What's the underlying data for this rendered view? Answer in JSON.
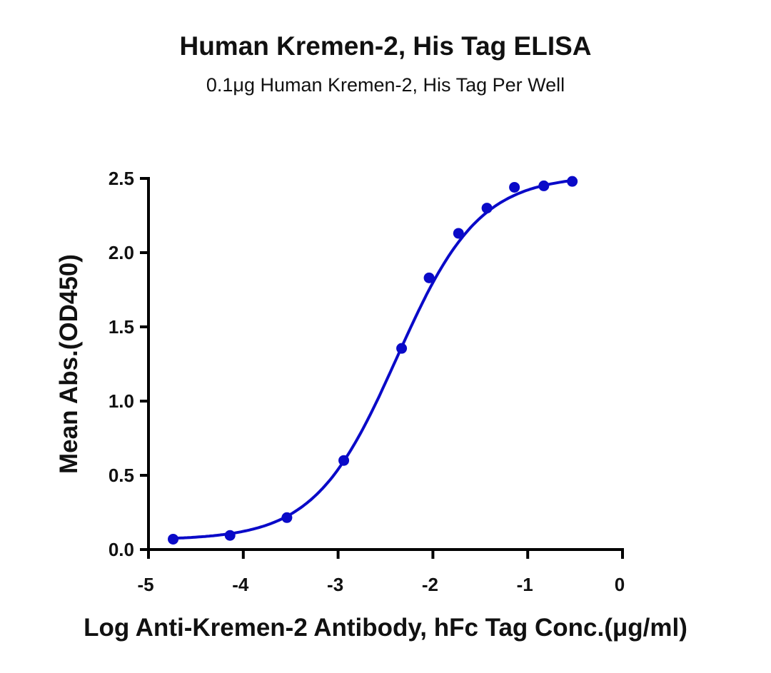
{
  "chart_data": {
    "type": "scatter",
    "title": "Human Kremen-2, His Tag ELISA",
    "subtitle": "0.1μg Human Kremen-2, His Tag Per Well",
    "xlabel": "Log Anti-Kremen-2 Antibody, hFc Tag Conc.(μg/ml)",
    "ylabel": "Mean Abs.(OD450)",
    "xlim": [
      -5,
      0
    ],
    "ylim": [
      0,
      2.5
    ],
    "xticks": [
      "-5",
      "-4",
      "-3",
      "-2",
      "-1",
      "0"
    ],
    "yticks": [
      "0.0",
      "0.5",
      "1.0",
      "1.5",
      "2.0",
      "2.5"
    ],
    "grid": false,
    "fit_curve": "sigmoidal",
    "color": "#0a0ac8",
    "x": [
      -4.74,
      -4.14,
      -3.54,
      -2.94,
      -2.33,
      -2.04,
      -1.73,
      -1.43,
      -1.14,
      -0.83,
      -0.53
    ],
    "y": [
      0.07,
      0.095,
      0.215,
      0.6,
      1.355,
      1.83,
      2.13,
      2.3,
      2.44,
      2.45,
      2.48
    ]
  }
}
